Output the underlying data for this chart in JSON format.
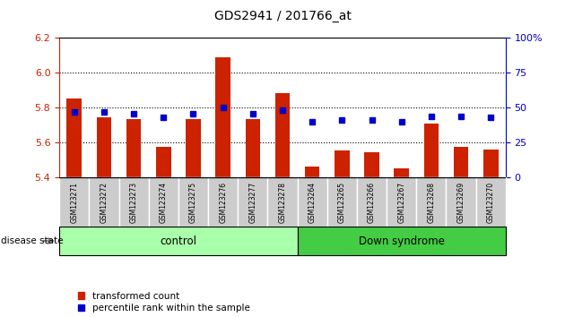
{
  "title": "GDS2941 / 201766_at",
  "samples": [
    "GSM123271",
    "GSM123272",
    "GSM123273",
    "GSM123274",
    "GSM123275",
    "GSM123276",
    "GSM123277",
    "GSM123278",
    "GSM123264",
    "GSM123265",
    "GSM123266",
    "GSM123267",
    "GSM123268",
    "GSM123269",
    "GSM123270"
  ],
  "red_values": [
    5.855,
    5.745,
    5.735,
    5.575,
    5.735,
    6.09,
    5.735,
    5.885,
    5.465,
    5.555,
    5.545,
    5.455,
    5.71,
    5.575,
    5.56
  ],
  "blue_values": [
    47,
    47,
    46,
    43,
    46,
    50,
    46,
    48,
    40,
    41,
    41,
    40,
    44,
    44,
    43
  ],
  "ymin": 5.4,
  "ymax": 6.2,
  "yticks_left": [
    5.4,
    5.6,
    5.8,
    6.0,
    6.2
  ],
  "yticks_right": [
    0,
    25,
    50,
    75,
    100
  ],
  "grid_lines": [
    5.6,
    5.8,
    6.0
  ],
  "control_count": 8,
  "down_syndrome_count": 7,
  "bar_color": "#cc2200",
  "dot_color": "#0000cc",
  "control_color": "#aaffaa",
  "down_syndrome_color": "#44cc44",
  "gray_box_color": "#cccccc",
  "legend_red_label": "transformed count",
  "legend_blue_label": "percentile rank within the sample",
  "disease_state_label": "disease state",
  "control_label": "control",
  "down_syndrome_label": "Down syndrome"
}
